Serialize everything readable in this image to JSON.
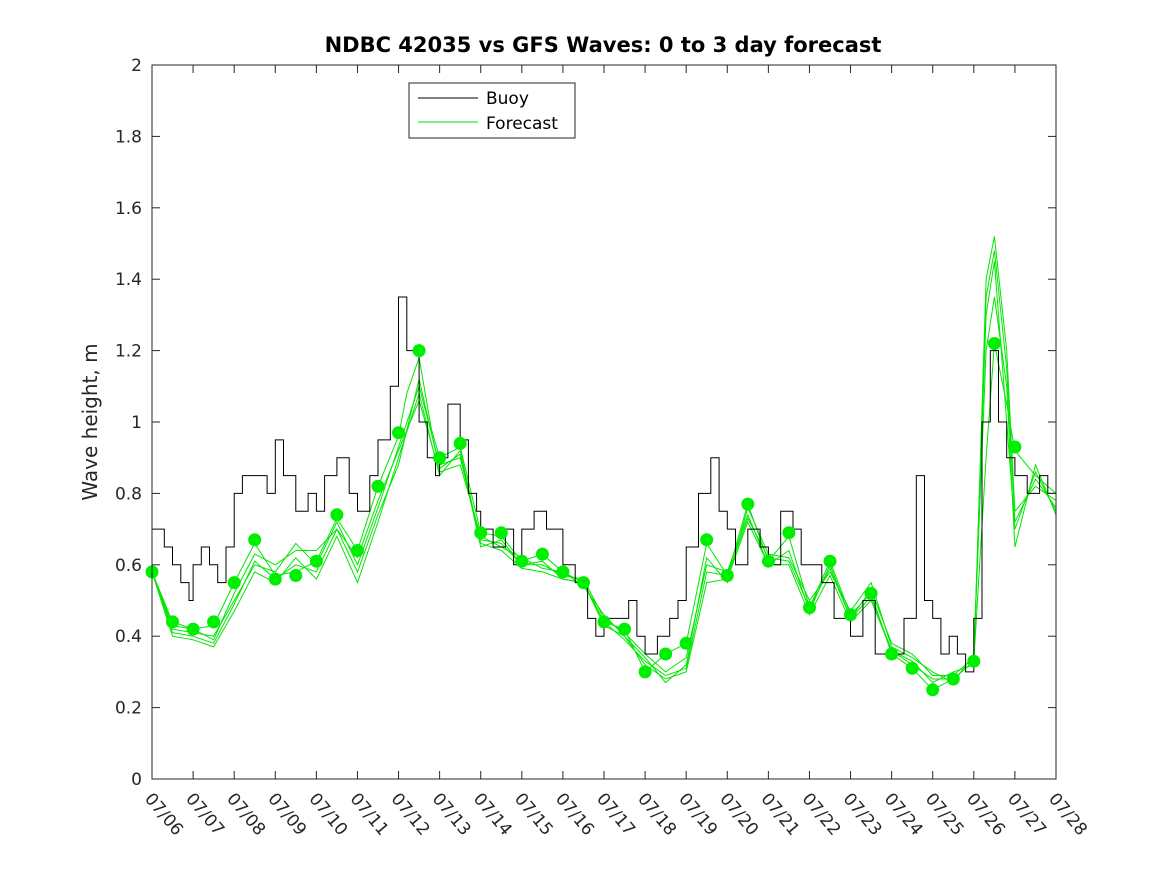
{
  "chart_data": {
    "type": "line",
    "title": "NDBC 42035 vs GFS Waves: 0 to 3 day forecast",
    "xlabel": "",
    "ylabel": "Wave height, m",
    "xlim": [
      "07/06",
      "07/28"
    ],
    "ylim": [
      0,
      2
    ],
    "x_ticks": [
      "07/06",
      "07/07",
      "07/08",
      "07/09",
      "07/10",
      "07/11",
      "07/12",
      "07/13",
      "07/14",
      "07/15",
      "07/16",
      "07/17",
      "07/18",
      "07/19",
      "07/20",
      "07/21",
      "07/22",
      "07/23",
      "07/24",
      "07/25",
      "07/26",
      "07/27",
      "07/28"
    ],
    "y_ticks": [
      "0",
      "0.2",
      "0.4",
      "0.6",
      "0.8",
      "1",
      "1.2",
      "1.4",
      "1.6",
      "1.8",
      "2"
    ],
    "grid": false,
    "legend": {
      "placement": "top-left",
      "entries": [
        {
          "label": "Buoy",
          "color": "#000000"
        },
        {
          "label": "Forecast",
          "color": "#00dd00"
        }
      ]
    },
    "colors": {
      "buoy": "#000000",
      "forecast": "#00e600",
      "marker": "#00ee00"
    },
    "buoy": {
      "x_days": [
        0,
        0.3,
        0.5,
        0.7,
        0.9,
        1.0,
        1.2,
        1.4,
        1.6,
        1.8,
        2.0,
        2.2,
        2.5,
        2.8,
        3.0,
        3.2,
        3.5,
        3.8,
        4.0,
        4.2,
        4.5,
        4.8,
        5.0,
        5.3,
        5.5,
        5.8,
        6.0,
        6.2,
        6.5,
        6.7,
        6.9,
        7.0,
        7.2,
        7.5,
        7.7,
        7.9,
        8.0,
        8.3,
        8.6,
        8.8,
        9.0,
        9.3,
        9.6,
        10.0,
        10.3,
        10.6,
        10.8,
        11.0,
        11.3,
        11.6,
        11.8,
        12.0,
        12.3,
        12.6,
        12.8,
        13.0,
        13.3,
        13.6,
        13.8,
        14.0,
        14.2,
        14.5,
        14.8,
        15.0,
        15.3,
        15.6,
        15.8,
        16.0,
        16.3,
        16.6,
        16.8,
        17.0,
        17.3,
        17.6,
        17.8,
        18.0,
        18.3,
        18.6,
        18.8,
        19.0,
        19.2,
        19.4,
        19.6,
        19.8,
        20.0,
        20.2,
        20.4,
        20.6,
        20.8,
        21.0,
        21.3,
        21.6,
        21.8,
        22.0
      ],
      "y": [
        0.7,
        0.65,
        0.6,
        0.55,
        0.5,
        0.6,
        0.65,
        0.6,
        0.55,
        0.65,
        0.8,
        0.85,
        0.85,
        0.8,
        0.95,
        0.85,
        0.75,
        0.8,
        0.75,
        0.85,
        0.9,
        0.8,
        0.75,
        0.85,
        0.95,
        1.1,
        1.35,
        1.2,
        1.0,
        0.9,
        0.85,
        0.9,
        1.05,
        0.95,
        0.8,
        0.75,
        0.7,
        0.65,
        0.7,
        0.6,
        0.7,
        0.75,
        0.7,
        0.6,
        0.55,
        0.45,
        0.4,
        0.45,
        0.45,
        0.5,
        0.4,
        0.35,
        0.4,
        0.45,
        0.5,
        0.65,
        0.8,
        0.9,
        0.75,
        0.7,
        0.6,
        0.7,
        0.65,
        0.6,
        0.75,
        0.7,
        0.6,
        0.6,
        0.55,
        0.45,
        0.45,
        0.4,
        0.5,
        0.35,
        0.35,
        0.35,
        0.45,
        0.85,
        0.5,
        0.45,
        0.35,
        0.4,
        0.35,
        0.3,
        0.45,
        1.0,
        1.2,
        1.0,
        0.9,
        0.85,
        0.8,
        0.85,
        0.8,
        0.8
      ]
    },
    "forecast_runs": [
      {
        "x_days": [
          0,
          0.5,
          1,
          1.5,
          2,
          2.5,
          3,
          3.5,
          4,
          4.5,
          5,
          5.5,
          6,
          6.2,
          6.5,
          6.8,
          7,
          7.5,
          8,
          8.5,
          9,
          9.5,
          10,
          10.5,
          11,
          11.5,
          12,
          12.5,
          13,
          13.5,
          14,
          14.5,
          15,
          15.5,
          16,
          16.5,
          17,
          17.5,
          18,
          18.5,
          19,
          19.5,
          20,
          20.3,
          20.5,
          20.8,
          21,
          21.5,
          22
        ],
        "y": [
          0.58,
          0.44,
          0.42,
          0.43,
          0.55,
          0.66,
          0.57,
          0.58,
          0.61,
          0.73,
          0.64,
          0.82,
          0.96,
          1.08,
          1.18,
          0.98,
          0.9,
          0.93,
          0.69,
          0.68,
          0.61,
          0.63,
          0.58,
          0.55,
          0.44,
          0.42,
          0.3,
          0.35,
          0.38,
          0.66,
          0.57,
          0.77,
          0.61,
          0.68,
          0.48,
          0.61,
          0.46,
          0.52,
          0.35,
          0.31,
          0.25,
          0.28,
          0.33,
          0.9,
          1.22,
          1.05,
          0.92,
          0.85,
          0.8
        ]
      },
      {
        "x_days": [
          0,
          0.5,
          1,
          1.5,
          2,
          2.5,
          3,
          3.5,
          4,
          4.5,
          5,
          5.5,
          6,
          6.5,
          7,
          7.5,
          8,
          8.5,
          9,
          9.5,
          10,
          10.5,
          11,
          11.5,
          12,
          12.5,
          13,
          13.5,
          14,
          14.5,
          15,
          15.5,
          16,
          16.5,
          17,
          17.5,
          18,
          18.5,
          19,
          19.5,
          20,
          20.3,
          20.5,
          20.8,
          21,
          21.5,
          22
        ],
        "y": [
          0.58,
          0.4,
          0.39,
          0.37,
          0.47,
          0.58,
          0.55,
          0.62,
          0.56,
          0.68,
          0.55,
          0.72,
          0.9,
          1.08,
          0.85,
          0.92,
          0.66,
          0.64,
          0.59,
          0.58,
          0.56,
          0.55,
          0.43,
          0.4,
          0.32,
          0.28,
          0.3,
          0.55,
          0.56,
          0.72,
          0.6,
          0.6,
          0.46,
          0.57,
          0.44,
          0.5,
          0.36,
          0.33,
          0.27,
          0.3,
          0.32,
          1.4,
          1.52,
          1.2,
          0.75,
          0.82,
          0.78
        ]
      },
      {
        "x_days": [
          0,
          0.5,
          1,
          1.5,
          2,
          2.5,
          3,
          3.5,
          4,
          4.5,
          5,
          5.5,
          6,
          6.5,
          7,
          7.5,
          8,
          8.5,
          9,
          9.5,
          10,
          10.5,
          11,
          11.5,
          12,
          12.5,
          13,
          13.5,
          14,
          14.5,
          15,
          15.5,
          16,
          16.5,
          17,
          17.5,
          18,
          18.5,
          19,
          19.5,
          20,
          20.3,
          20.5,
          20.8,
          21,
          21.5,
          22
        ],
        "y": [
          0.58,
          0.42,
          0.41,
          0.4,
          0.5,
          0.6,
          0.58,
          0.66,
          0.6,
          0.72,
          0.6,
          0.76,
          0.93,
          1.1,
          0.88,
          0.9,
          0.67,
          0.66,
          0.6,
          0.6,
          0.57,
          0.56,
          0.45,
          0.41,
          0.35,
          0.3,
          0.34,
          0.6,
          0.58,
          0.74,
          0.6,
          0.64,
          0.47,
          0.6,
          0.45,
          0.53,
          0.38,
          0.35,
          0.29,
          0.29,
          0.34,
          1.3,
          1.45,
          1.0,
          0.7,
          0.86,
          0.75
        ]
      },
      {
        "x_days": [
          0,
          0.5,
          1,
          1.5,
          2,
          2.5,
          3,
          3.5,
          4,
          4.5,
          5,
          5.5,
          6,
          6.5,
          7,
          7.5,
          8,
          8.5,
          9,
          9.5,
          10,
          10.5,
          11,
          11.5,
          12,
          12.5,
          13,
          13.5,
          14,
          14.5,
          15,
          15.5,
          16,
          16.5,
          17,
          17.5,
          18,
          18.5,
          19,
          19.5,
          20,
          20.3,
          20.5,
          20.8,
          21,
          21.5,
          22
        ],
        "y": [
          0.58,
          0.43,
          0.42,
          0.39,
          0.52,
          0.63,
          0.6,
          0.64,
          0.64,
          0.7,
          0.62,
          0.78,
          0.92,
          1.06,
          0.86,
          0.88,
          0.68,
          0.65,
          0.62,
          0.59,
          0.58,
          0.54,
          0.46,
          0.4,
          0.34,
          0.27,
          0.32,
          0.62,
          0.55,
          0.76,
          0.63,
          0.62,
          0.5,
          0.58,
          0.47,
          0.55,
          0.37,
          0.34,
          0.3,
          0.27,
          0.35,
          1.2,
          1.35,
          1.1,
          0.65,
          0.88,
          0.74
        ]
      },
      {
        "x_days": [
          0,
          0.5,
          1,
          1.5,
          2,
          2.5,
          3,
          3.5,
          4,
          4.5,
          5,
          5.5,
          6,
          6.5,
          7,
          7.5,
          8,
          8.5,
          9,
          9.5,
          10,
          10.5,
          11,
          11.5,
          12,
          12.5,
          13,
          13.5,
          14,
          14.5,
          15,
          15.5,
          16,
          16.5,
          17,
          17.5,
          18,
          18.5,
          19,
          19.5,
          20,
          20.3,
          20.5,
          20.8,
          21,
          21.5,
          22
        ],
        "y": [
          0.58,
          0.41,
          0.4,
          0.38,
          0.49,
          0.61,
          0.56,
          0.6,
          0.58,
          0.7,
          0.58,
          0.74,
          0.88,
          1.12,
          0.87,
          0.91,
          0.65,
          0.67,
          0.6,
          0.61,
          0.56,
          0.55,
          0.44,
          0.39,
          0.33,
          0.29,
          0.31,
          0.58,
          0.57,
          0.73,
          0.62,
          0.61,
          0.48,
          0.59,
          0.45,
          0.51,
          0.36,
          0.32,
          0.28,
          0.28,
          0.33,
          1.35,
          1.48,
          1.15,
          0.72,
          0.84,
          0.76
        ]
      }
    ],
    "forecast_points": {
      "x_days": [
        0,
        0.5,
        1,
        1.5,
        2,
        2.5,
        3,
        3.5,
        4,
        4.5,
        5,
        5.5,
        6,
        6.5,
        7,
        7.5,
        8,
        8.5,
        9,
        9.5,
        10,
        10.5,
        11,
        11.5,
        12,
        12.5,
        13,
        13.5,
        14,
        14.5,
        15,
        15.5,
        16,
        16.5,
        17,
        17.5,
        18,
        18.5,
        19,
        19.5,
        20,
        20.5,
        21
      ],
      "y": [
        0.58,
        0.44,
        0.42,
        0.44,
        0.55,
        0.67,
        0.56,
        0.57,
        0.61,
        0.74,
        0.64,
        0.82,
        0.97,
        1.2,
        0.9,
        0.94,
        0.69,
        0.69,
        0.61,
        0.63,
        0.58,
        0.55,
        0.44,
        0.42,
        0.3,
        0.35,
        0.38,
        0.67,
        0.57,
        0.77,
        0.61,
        0.69,
        0.48,
        0.61,
        0.46,
        0.52,
        0.35,
        0.31,
        0.25,
        0.28,
        0.33,
        1.22,
        0.93
      ]
    }
  }
}
